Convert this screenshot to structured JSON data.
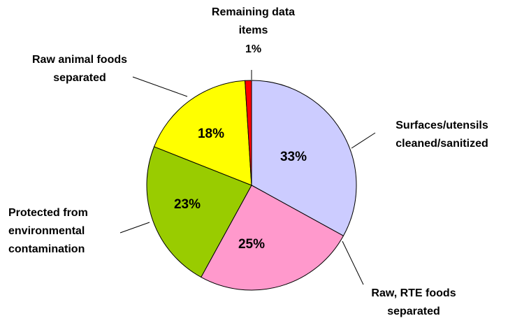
{
  "chart_data": {
    "type": "pie",
    "categories": [
      "Surfaces/utensils cleaned/sanitized",
      "Raw, RTE foods separated",
      "Protected from environmental contamination",
      "Raw animal foods separated",
      "Remaining data items"
    ],
    "values": [
      33,
      25,
      23,
      18,
      1
    ],
    "value_labels": [
      "33%",
      "25%",
      "23%",
      "18%",
      "1%"
    ],
    "colors": [
      "#ccccff",
      "#ff99cc",
      "#99cc00",
      "#ffff00",
      "#ff0000"
    ]
  }
}
